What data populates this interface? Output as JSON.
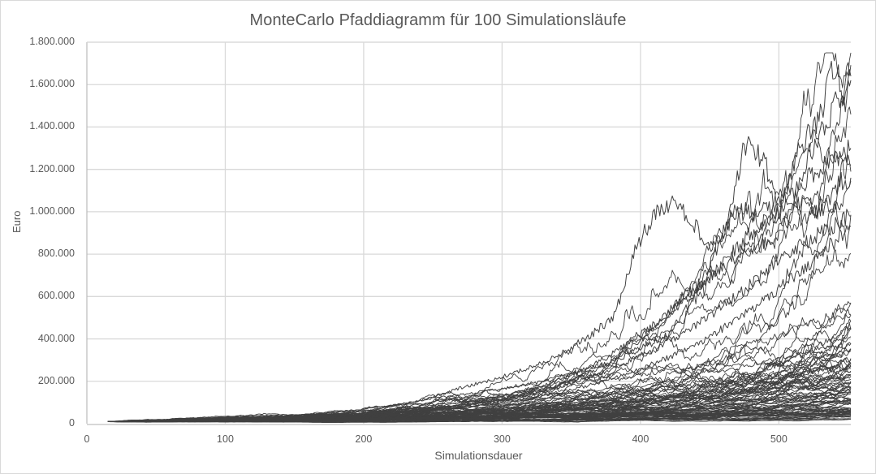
{
  "chart_data": {
    "type": "line",
    "title": "MonteCarlo Pfaddiagramm für 100 Simulationsläufe",
    "xlabel": "Simulationsdauer",
    "ylabel": "Euro",
    "xlim": [
      0,
      552
    ],
    "ylim": [
      0,
      1800000
    ],
    "x_ticks": [
      0,
      100,
      200,
      300,
      400,
      500
    ],
    "x_tick_labels": [
      "0",
      "100",
      "200",
      "300",
      "400",
      "500"
    ],
    "y_ticks": [
      0,
      200000,
      400000,
      600000,
      800000,
      1000000,
      1200000,
      1400000,
      1600000,
      1800000
    ],
    "y_tick_labels": [
      "0",
      "200.000",
      "400.000",
      "600.000",
      "800.000",
      "1.000.000",
      "1.200.000",
      "1.400.000",
      "1.600.000",
      "1.800.000"
    ],
    "grid": {
      "horizontal": true,
      "vertical": true
    },
    "legend": "none",
    "series_count": 100,
    "series_color": "#404040",
    "path_start": {
      "x": 15,
      "y": 10000
    },
    "path_end_x": 552,
    "highlighted_paths": [
      {
        "name": "outlier-early-peak",
        "points": [
          [
            15,
            10000
          ],
          [
            100,
            20000
          ],
          [
            200,
            60000
          ],
          [
            270,
            170000
          ],
          [
            330,
            290000
          ],
          [
            380,
            500000
          ],
          [
            395,
            800000
          ],
          [
            410,
            1000000
          ],
          [
            425,
            1050000
          ],
          [
            440,
            930000
          ],
          [
            450,
            820000
          ],
          [
            470,
            1000000
          ],
          [
            490,
            1000000
          ],
          [
            510,
            1100000
          ],
          [
            530,
            1200000
          ],
          [
            545,
            1280000
          ],
          [
            552,
            1300000
          ]
        ]
      },
      {
        "name": "outlier-max",
        "points": [
          [
            15,
            10000
          ],
          [
            150,
            40000
          ],
          [
            250,
            120000
          ],
          [
            350,
            230000
          ],
          [
            420,
            420000
          ],
          [
            460,
            900000
          ],
          [
            475,
            1320000
          ],
          [
            490,
            1250000
          ],
          [
            500,
            1000000
          ],
          [
            515,
            1300000
          ],
          [
            530,
            1450000
          ],
          [
            540,
            1700000
          ],
          [
            548,
            1500000
          ],
          [
            552,
            1640000
          ]
        ]
      },
      {
        "name": "outlier-late-rise",
        "points": [
          [
            15,
            10000
          ],
          [
            200,
            50000
          ],
          [
            300,
            110000
          ],
          [
            380,
            300000
          ],
          [
            430,
            600000
          ],
          [
            470,
            800000
          ],
          [
            500,
            900000
          ],
          [
            520,
            1250000
          ],
          [
            540,
            1500000
          ],
          [
            552,
            1620000
          ]
        ]
      },
      {
        "name": "outlier-mid",
        "points": [
          [
            15,
            10000
          ],
          [
            200,
            50000
          ],
          [
            320,
            160000
          ],
          [
            400,
            420000
          ],
          [
            450,
            700000
          ],
          [
            480,
            900000
          ],
          [
            510,
            1060000
          ],
          [
            530,
            1000000
          ],
          [
            545,
            1150000
          ],
          [
            552,
            1160000
          ]
        ]
      },
      {
        "name": "outlier-upper-mid",
        "points": [
          [
            15,
            10000
          ],
          [
            200,
            45000
          ],
          [
            320,
            140000
          ],
          [
            400,
            320000
          ],
          [
            460,
            560000
          ],
          [
            500,
            780000
          ],
          [
            530,
            900000
          ],
          [
            552,
            980000
          ]
        ]
      },
      {
        "name": "outlier-upper-mid-2",
        "points": [
          [
            15,
            10000
          ],
          [
            200,
            40000
          ],
          [
            320,
            120000
          ],
          [
            400,
            260000
          ],
          [
            460,
            450000
          ],
          [
            500,
            640000
          ],
          [
            530,
            800000
          ],
          [
            552,
            930000
          ]
        ]
      }
    ],
    "distribution_summary": {
      "median_end_value": 250000,
      "p90_end_value": 800000,
      "min_end_value": 20000,
      "max_value_reached": 1710000
    }
  }
}
